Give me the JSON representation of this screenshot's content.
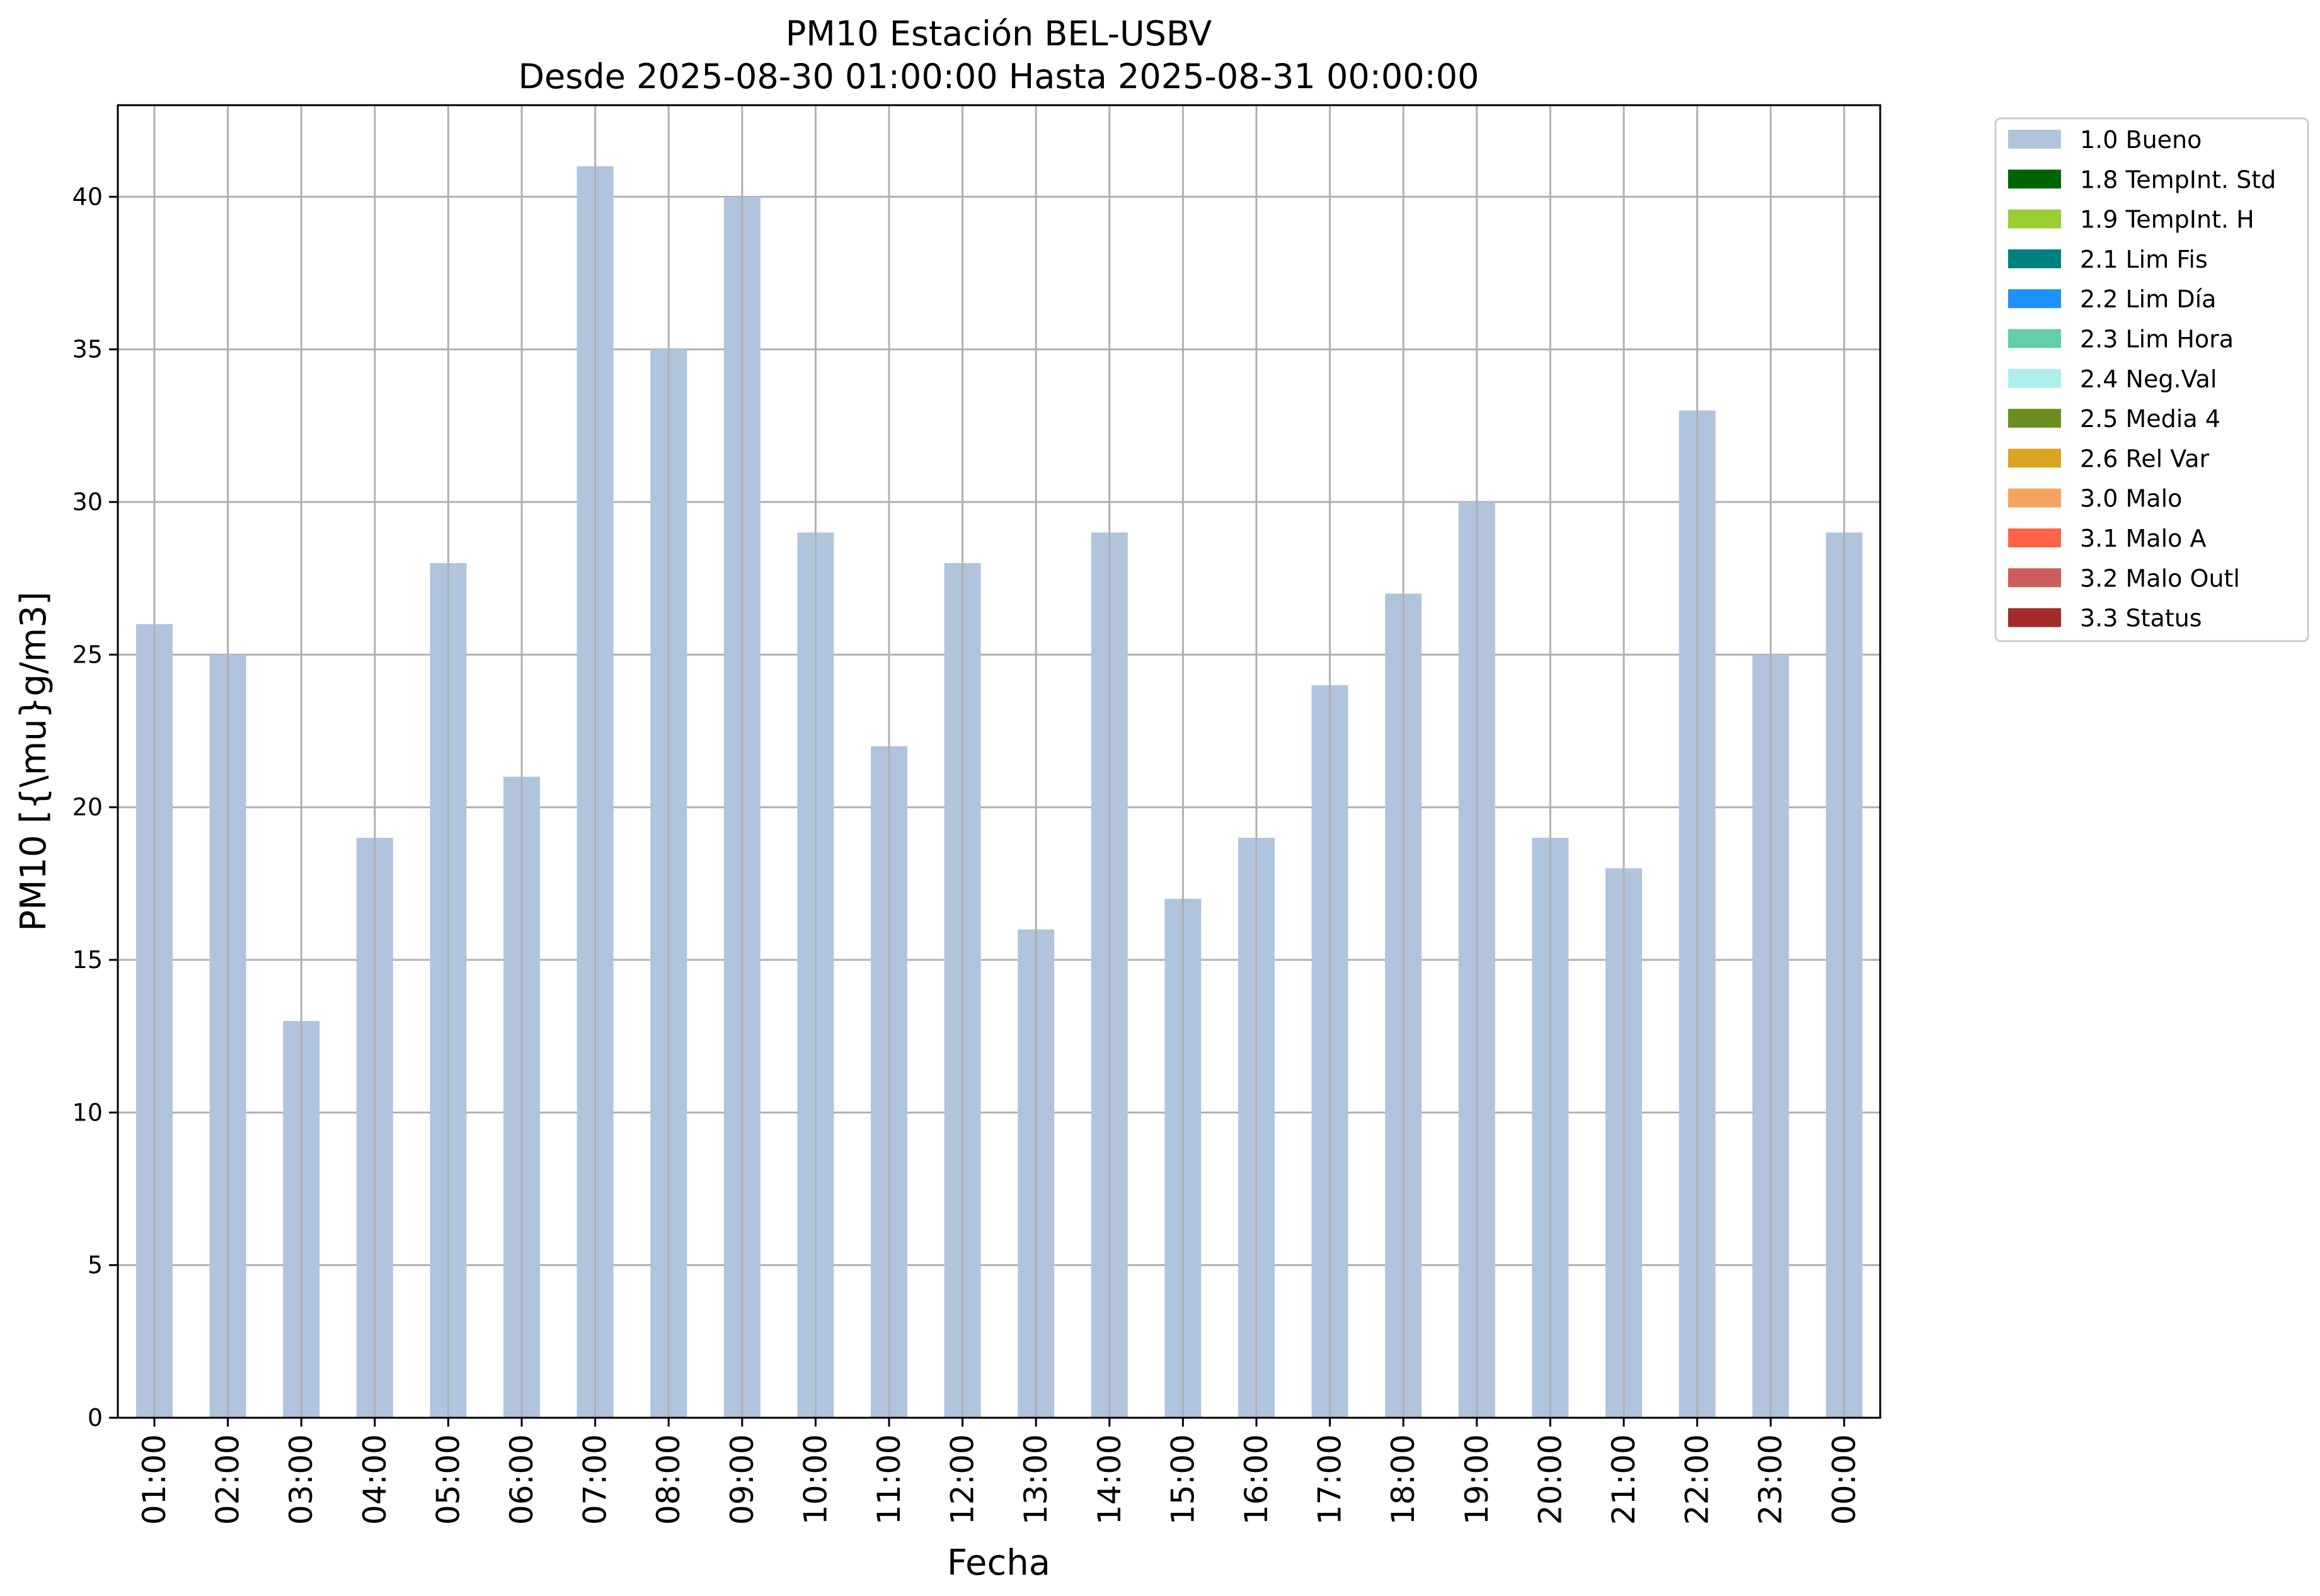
{
  "chart_data": {
    "type": "bar",
    "title": "PM10 Estación BEL-USBV",
    "subtitle": "Desde 2025-08-30 01:00:00 Hasta 2025-08-31 00:00:00",
    "xlabel": "Fecha",
    "ylabel": "PM10 [{\\mu}g/m3]",
    "ylim": [
      0,
      43
    ],
    "yticks": [
      0,
      5,
      10,
      15,
      20,
      25,
      30,
      35,
      40
    ],
    "grid": true,
    "legend_placement": "outside top-right",
    "categories": [
      "01:00",
      "02:00",
      "03:00",
      "04:00",
      "05:00",
      "06:00",
      "07:00",
      "08:00",
      "09:00",
      "10:00",
      "11:00",
      "12:00",
      "13:00",
      "14:00",
      "15:00",
      "16:00",
      "17:00",
      "18:00",
      "19:00",
      "20:00",
      "21:00",
      "22:00",
      "23:00",
      "00:00"
    ],
    "series": [
      {
        "name": "1.0 Bueno",
        "color": "#b0c4de",
        "values": [
          26,
          25,
          13,
          19,
          28,
          21,
          41,
          35,
          40,
          29,
          22,
          28,
          16,
          29,
          17,
          19,
          24,
          27,
          30,
          19,
          18,
          33,
          25,
          29
        ]
      }
    ],
    "legend": [
      {
        "label": "1.0 Bueno",
        "color": "#b0c4de"
      },
      {
        "label": "1.8 TempInt. Std",
        "color": "#006400"
      },
      {
        "label": "1.9 TempInt. H",
        "color": "#9acd32"
      },
      {
        "label": "2.1 Lim Fis",
        "color": "#008080"
      },
      {
        "label": "2.2 Lim Día",
        "color": "#1e90ff"
      },
      {
        "label": "2.3 Lim Hora",
        "color": "#66cdaa"
      },
      {
        "label": "2.4 Neg.Val",
        "color": "#afeeee"
      },
      {
        "label": "2.5 Media 4",
        "color": "#6b8e23"
      },
      {
        "label": "2.6 Rel Var",
        "color": "#daa520"
      },
      {
        "label": "3.0 Malo",
        "color": "#f4a460"
      },
      {
        "label": "3.1 Malo A",
        "color": "#ff6347"
      },
      {
        "label": "3.2 Malo Outl",
        "color": "#cd5c5c"
      },
      {
        "label": "3.3 Status",
        "color": "#a52a2a"
      }
    ]
  },
  "colors": {
    "grid": "#b0b0b0",
    "axis": "#000000"
  }
}
